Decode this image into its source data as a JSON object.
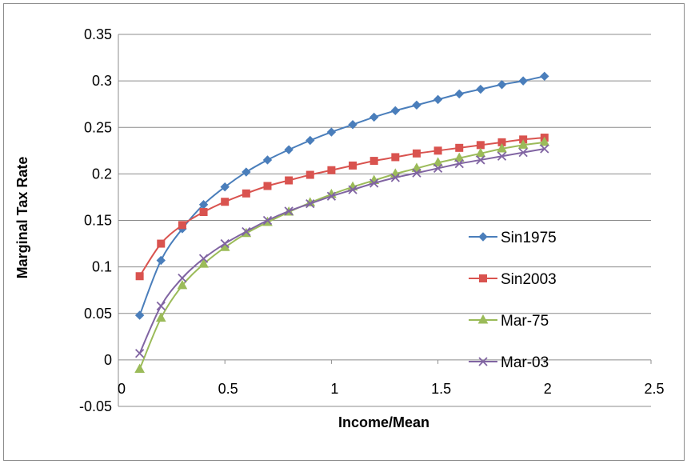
{
  "chart_data": {
    "type": "line",
    "xlabel": "Income/Mean",
    "ylabel": "Marginal Tax Rate",
    "xlim": [
      0,
      2.5
    ],
    "ylim": [
      -0.05,
      0.35
    ],
    "x_ticks": [
      "0",
      "0.5",
      "1",
      "1.5",
      "2",
      "2.5"
    ],
    "y_ticks": [
      "-0.05",
      "0",
      "0.05",
      "0.1",
      "0.15",
      "0.2",
      "0.25",
      "0.3",
      "0.35"
    ],
    "grid": "horizontal",
    "legend_position": "right",
    "x": [
      0.1,
      0.2,
      0.3,
      0.4,
      0.5,
      0.6,
      0.7,
      0.8,
      0.9,
      1.0,
      1.1,
      1.2,
      1.3,
      1.4,
      1.5,
      1.6,
      1.7,
      1.8,
      1.9,
      2.0
    ],
    "series": [
      {
        "name": "Sin1975",
        "color": "#4a7ebb",
        "marker": "diamond",
        "values": [
          0.048,
          0.107,
          0.141,
          0.167,
          0.186,
          0.202,
          0.215,
          0.226,
          0.236,
          0.245,
          0.253,
          0.261,
          0.268,
          0.274,
          0.28,
          0.286,
          0.291,
          0.296,
          0.3,
          0.305
        ]
      },
      {
        "name": "Sin2003",
        "color": "#d9534f",
        "marker": "square",
        "values": [
          0.09,
          0.125,
          0.145,
          0.159,
          0.17,
          0.179,
          0.187,
          0.193,
          0.199,
          0.204,
          0.209,
          0.214,
          0.218,
          0.222,
          0.225,
          0.228,
          0.231,
          0.234,
          0.237,
          0.239
        ]
      },
      {
        "name": "Mar-75",
        "color": "#9bbb59",
        "marker": "triangle",
        "values": [
          -0.01,
          0.045,
          0.08,
          0.103,
          0.121,
          0.136,
          0.148,
          0.159,
          0.169,
          0.178,
          0.186,
          0.193,
          0.2,
          0.206,
          0.212,
          0.217,
          0.222,
          0.227,
          0.231,
          0.234
        ]
      },
      {
        "name": "Mar-03",
        "color": "#8064a2",
        "marker": "x",
        "values": [
          0.007,
          0.058,
          0.088,
          0.109,
          0.125,
          0.138,
          0.15,
          0.16,
          0.168,
          0.176,
          0.183,
          0.19,
          0.196,
          0.201,
          0.206,
          0.211,
          0.215,
          0.219,
          0.223,
          0.227
        ]
      }
    ]
  }
}
